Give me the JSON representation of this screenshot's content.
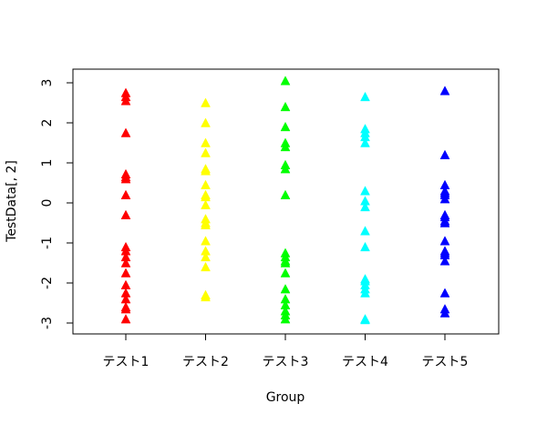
{
  "chart_data": {
    "type": "scatter",
    "title": "",
    "xlabel": "Group",
    "ylabel": "TestData[, 2]",
    "ylim": [
      -3.2,
      3.2
    ],
    "yticks": [
      -3,
      -2,
      -1,
      0,
      1,
      2,
      3
    ],
    "ytick_labels": [
      "-3",
      "-2",
      "-1",
      "0",
      "1",
      "2",
      "3"
    ],
    "categories": [
      "テスト1",
      "テスト2",
      "テスト3",
      "テスト4",
      "テスト5"
    ],
    "grid": false,
    "marker": "filled-triangle",
    "series": [
      {
        "color": "#ff0000",
        "values": [
          2.75,
          2.65,
          2.55,
          1.75,
          0.72,
          0.65,
          0.6,
          0.2,
          -0.3,
          -1.1,
          -1.2,
          -1.35,
          -1.5,
          -1.75,
          -2.05,
          -2.25,
          -2.4,
          -2.6,
          -2.65,
          -2.9
        ]
      },
      {
        "color": "#ffff00",
        "values": [
          2.5,
          2.0,
          1.5,
          1.25,
          0.85,
          0.8,
          0.45,
          0.2,
          0.15,
          -0.05,
          -0.4,
          -0.5,
          -0.55,
          -0.95,
          -1.2,
          -1.35,
          -1.6,
          -2.3,
          -2.35
        ]
      },
      {
        "color": "#00ff00",
        "values": [
          3.05,
          2.4,
          1.9,
          1.5,
          1.4,
          0.95,
          0.85,
          0.2,
          -1.25,
          -1.35,
          -1.45,
          -1.5,
          -1.75,
          -2.15,
          -2.4,
          -2.55,
          -2.7,
          -2.8,
          -2.9
        ]
      },
      {
        "color": "#00ffff",
        "values": [
          2.65,
          1.85,
          1.75,
          1.65,
          1.5,
          0.3,
          0.05,
          -0.1,
          -0.7,
          -1.1,
          -1.9,
          -1.95,
          -2.05,
          -2.15,
          -2.25,
          -2.9,
          -2.92
        ]
      },
      {
        "color": "#0000ff",
        "values": [
          2.8,
          1.2,
          0.45,
          0.3,
          0.25,
          0.2,
          0.1,
          -0.3,
          -0.35,
          -0.45,
          -0.5,
          -0.95,
          -1.2,
          -1.25,
          -1.3,
          -1.45,
          -2.25,
          -2.65,
          -2.75
        ]
      }
    ]
  }
}
